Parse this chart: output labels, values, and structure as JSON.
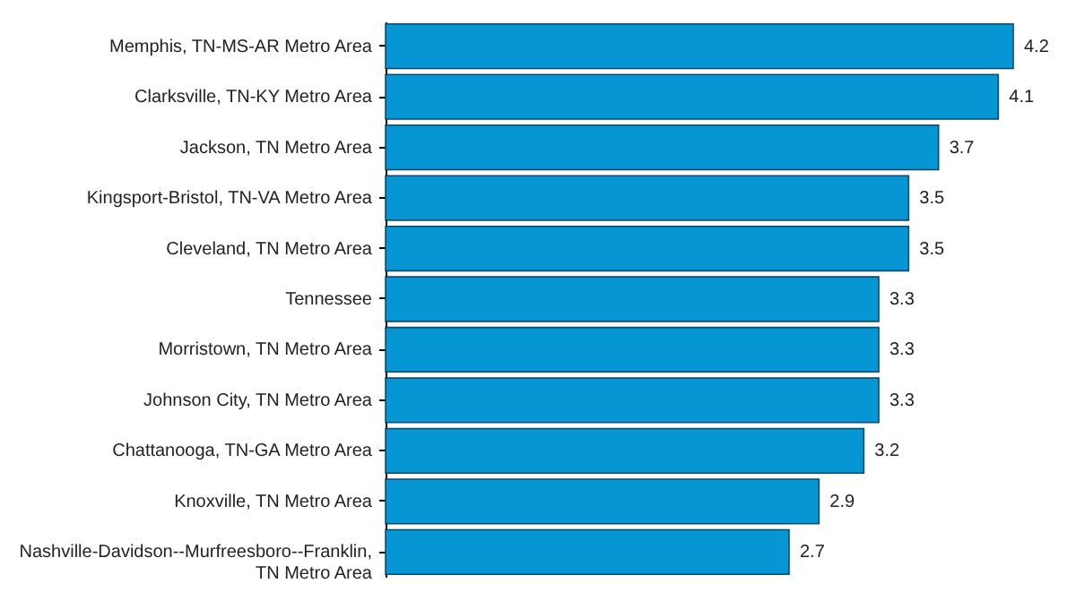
{
  "chart_data": {
    "type": "bar",
    "orientation": "horizontal",
    "categories": [
      "Memphis, TN-MS-AR Metro Area",
      "Clarksville, TN-KY Metro Area",
      "Jackson, TN Metro Area",
      "Kingsport-Bristol, TN-VA Metro Area",
      "Cleveland, TN Metro Area",
      "Tennessee",
      "Morristown, TN Metro Area",
      "Johnson City, TN Metro Area",
      "Chattanooga, TN-GA Metro Area",
      "Knoxville, TN Metro Area",
      "Nashville-Davidson--Murfreesboro--Franklin, TN Metro Area"
    ],
    "values": [
      4.2,
      4.1,
      3.7,
      3.5,
      3.5,
      3.3,
      3.3,
      3.3,
      3.2,
      2.9,
      2.7
    ],
    "color": "#0796d4",
    "data_labels": true
  }
}
